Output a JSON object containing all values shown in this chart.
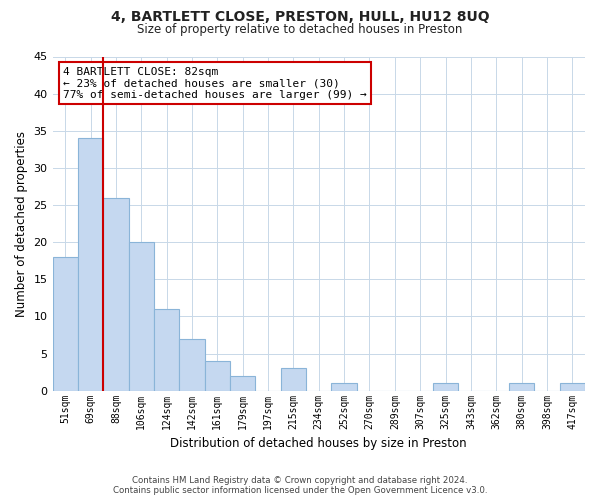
{
  "title": "4, BARTLETT CLOSE, PRESTON, HULL, HU12 8UQ",
  "subtitle": "Size of property relative to detached houses in Preston",
  "xlabel": "Distribution of detached houses by size in Preston",
  "ylabel": "Number of detached properties",
  "footnote1": "Contains HM Land Registry data © Crown copyright and database right 2024.",
  "footnote2": "Contains public sector information licensed under the Open Government Licence v3.0.",
  "bar_labels": [
    "51sqm",
    "69sqm",
    "88sqm",
    "106sqm",
    "124sqm",
    "142sqm",
    "161sqm",
    "179sqm",
    "197sqm",
    "215sqm",
    "234sqm",
    "252sqm",
    "270sqm",
    "289sqm",
    "307sqm",
    "325sqm",
    "343sqm",
    "362sqm",
    "380sqm",
    "398sqm",
    "417sqm"
  ],
  "bar_values": [
    18,
    34,
    26,
    20,
    11,
    7,
    4,
    2,
    0,
    3,
    0,
    1,
    0,
    0,
    0,
    1,
    0,
    0,
    1,
    0,
    1
  ],
  "bar_color": "#c5d8f0",
  "bar_edge_color": "#8ab4d8",
  "highlight_color": "#cc0000",
  "annotation_title": "4 BARTLETT CLOSE: 82sqm",
  "annotation_line1": "← 23% of detached houses are smaller (30)",
  "annotation_line2": "77% of semi-detached houses are larger (99) →",
  "annotation_box_color": "#ffffff",
  "annotation_box_edge": "#cc0000",
  "ylim": [
    0,
    45
  ],
  "yticks": [
    0,
    5,
    10,
    15,
    20,
    25,
    30,
    35,
    40,
    45
  ],
  "background_color": "#ffffff",
  "grid_color": "#c8d8e8"
}
